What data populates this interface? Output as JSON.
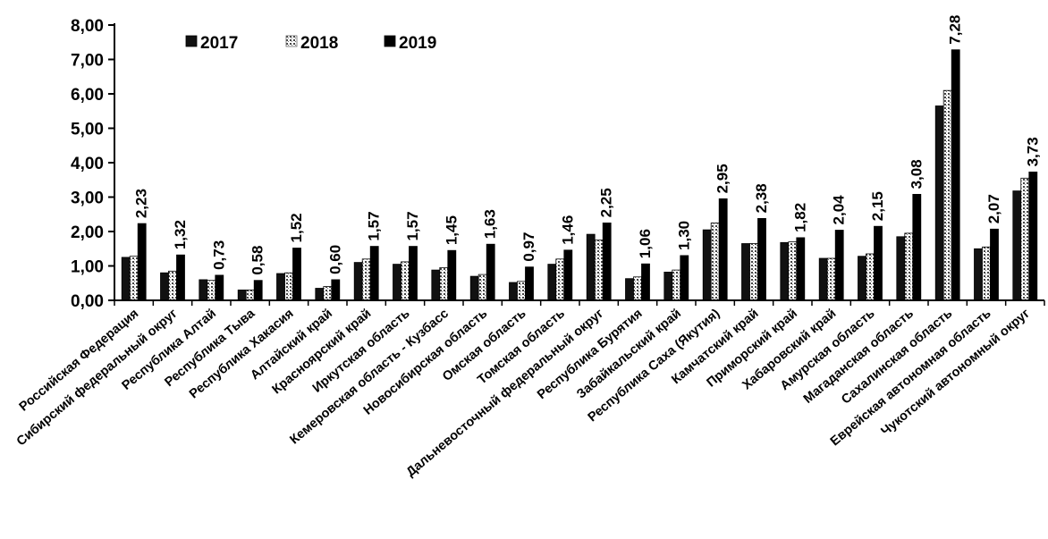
{
  "chart_data": {
    "type": "bar",
    "title": "",
    "xlabel": "",
    "ylabel": "",
    "ylim": [
      0,
      8
    ],
    "y_ticks": [
      "0,00",
      "1,00",
      "2,00",
      "3,00",
      "4,00",
      "5,00",
      "6,00",
      "7,00",
      "8,00"
    ],
    "grid": false,
    "legend_position": "top-left",
    "categories": [
      "Российская Федерация",
      "Сибирский федеральный округ",
      "Республика Алтай",
      "Республика Тыва",
      "Республика Хакасия",
      "Алтайский край",
      "Красноярский край",
      "Иркутская область",
      "Кемеровская область - Кузбасс",
      "Новосибирская область",
      "Омская область",
      "Томская область",
      "Дальневосточный федеральный округ",
      "Республика Бурятия",
      "Забайкальский край",
      "Республика Саха (Якутия)",
      "Камчатский край",
      "Приморский край",
      "Хабаровский край",
      "Амурская область",
      "Магаданская область",
      "Сахалинская область",
      "Еврейская автономная область",
      "Чукотский автономный округ"
    ],
    "series": [
      {
        "name": "2017",
        "color": "#111111",
        "values": [
          1.25,
          0.8,
          0.6,
          0.3,
          0.78,
          0.35,
          1.1,
          1.05,
          0.88,
          0.7,
          0.52,
          1.05,
          1.92,
          0.63,
          0.82,
          2.05,
          1.65,
          1.68,
          1.22,
          1.28,
          1.85,
          5.65,
          1.5,
          3.18
        ]
      },
      {
        "name": "2018",
        "color": "#3a3a3a",
        "values": [
          1.28,
          0.85,
          0.58,
          0.3,
          0.8,
          0.4,
          1.2,
          1.12,
          0.95,
          0.75,
          0.55,
          1.2,
          1.75,
          0.68,
          0.88,
          2.25,
          1.65,
          1.7,
          1.22,
          1.35,
          1.95,
          6.1,
          1.55,
          3.55
        ]
      },
      {
        "name": "2019",
        "color": "#000000",
        "values": [
          2.23,
          1.32,
          0.73,
          0.58,
          1.52,
          0.6,
          1.57,
          1.57,
          1.45,
          1.63,
          0.97,
          1.46,
          2.25,
          1.06,
          1.3,
          2.95,
          2.38,
          1.82,
          2.04,
          2.15,
          3.08,
          7.28,
          2.07,
          3.73
        ]
      }
    ],
    "data_labels": [
      "2,23",
      "1,32",
      "0,73",
      "0,58",
      "1,52",
      "0,60",
      "1,57",
      "1,57",
      "1,45",
      "1,63",
      "0,97",
      "1,46",
      "2,25",
      "1,06",
      "1,30",
      "2,95",
      "2,38",
      "1,82",
      "2,04",
      "2,15",
      "3,08",
      "7,28",
      "2,07",
      "3,73"
    ]
  }
}
